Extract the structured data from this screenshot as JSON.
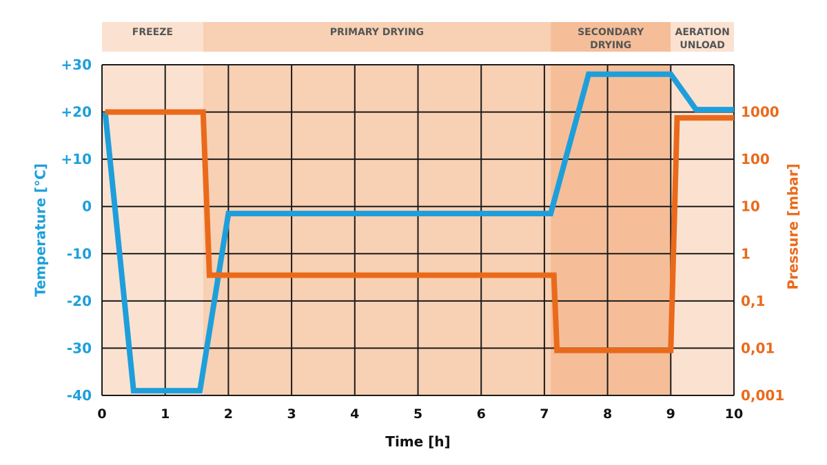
{
  "chart_data": {
    "type": "line",
    "title": "",
    "xlabel": "Time [h]",
    "ylabel_left": "Temperature [°C]",
    "ylabel_right": "Pressure [mbar]",
    "xlim": [
      0,
      10
    ],
    "ylim_left": [
      -40,
      30
    ],
    "ylim_right": [
      0.001,
      10000
    ],
    "right_axis_scale": "log",
    "grid": true,
    "x_ticks": [
      "0",
      "1",
      "2",
      "3",
      "4",
      "5",
      "6",
      "7",
      "8",
      "9",
      "10"
    ],
    "y_left_ticks": [
      {
        "value": 30,
        "label": "+30"
      },
      {
        "value": 20,
        "label": "+20"
      },
      {
        "value": 10,
        "label": "+10"
      },
      {
        "value": 0,
        "label": "0"
      },
      {
        "value": -10,
        "label": "-10"
      },
      {
        "value": -20,
        "label": "-20"
      },
      {
        "value": -30,
        "label": "-30"
      },
      {
        "value": -40,
        "label": "-40"
      }
    ],
    "y_right_ticks": [
      {
        "value": 1000,
        "label": "1000"
      },
      {
        "value": 100,
        "label": "100"
      },
      {
        "value": 10,
        "label": "10"
      },
      {
        "value": 1,
        "label": "1"
      },
      {
        "value": 0.1,
        "label": "0,1"
      },
      {
        "value": 0.01,
        "label": "0,01"
      },
      {
        "value": 0.001,
        "label": "0,001"
      }
    ],
    "phases": [
      {
        "label": [
          "FREEZE"
        ],
        "start": 0,
        "end": 1.6,
        "color": "#FBE2D0"
      },
      {
        "label": [
          "PRIMARY DRYING"
        ],
        "start": 1.6,
        "end": 7.1,
        "color": "#F8D0B3"
      },
      {
        "label": [
          "SECONDARY",
          "DRYING"
        ],
        "start": 7.1,
        "end": 9.0,
        "color": "#F5BE98"
      },
      {
        "label": [
          "AERATION",
          "UNLOAD"
        ],
        "start": 9.0,
        "end": 10,
        "color": "#FBE2D0"
      }
    ],
    "series": [
      {
        "axis": "left",
        "color": "#1E9FDB",
        "points": [
          [
            0.05,
            20
          ],
          [
            0.5,
            -39
          ],
          [
            1.55,
            -39
          ],
          [
            2.0,
            -1.5
          ],
          [
            7.1,
            -1.5
          ],
          [
            7.7,
            28
          ],
          [
            9.0,
            28
          ],
          [
            9.4,
            20.5
          ],
          [
            10.0,
            20.5
          ]
        ]
      },
      {
        "axis": "right",
        "color": "#EA6A1B",
        "points": [
          [
            0.05,
            1000
          ],
          [
            1.6,
            1000
          ],
          [
            1.7,
            0.35
          ],
          [
            7.15,
            0.35
          ],
          [
            7.2,
            0.009
          ],
          [
            9.0,
            0.009
          ],
          [
            9.1,
            750
          ],
          [
            10.0,
            750
          ]
        ]
      }
    ]
  },
  "colors": {
    "temperature": "#1E9FDB",
    "pressure": "#EA6A1B",
    "grid": "#1a1a1a"
  }
}
